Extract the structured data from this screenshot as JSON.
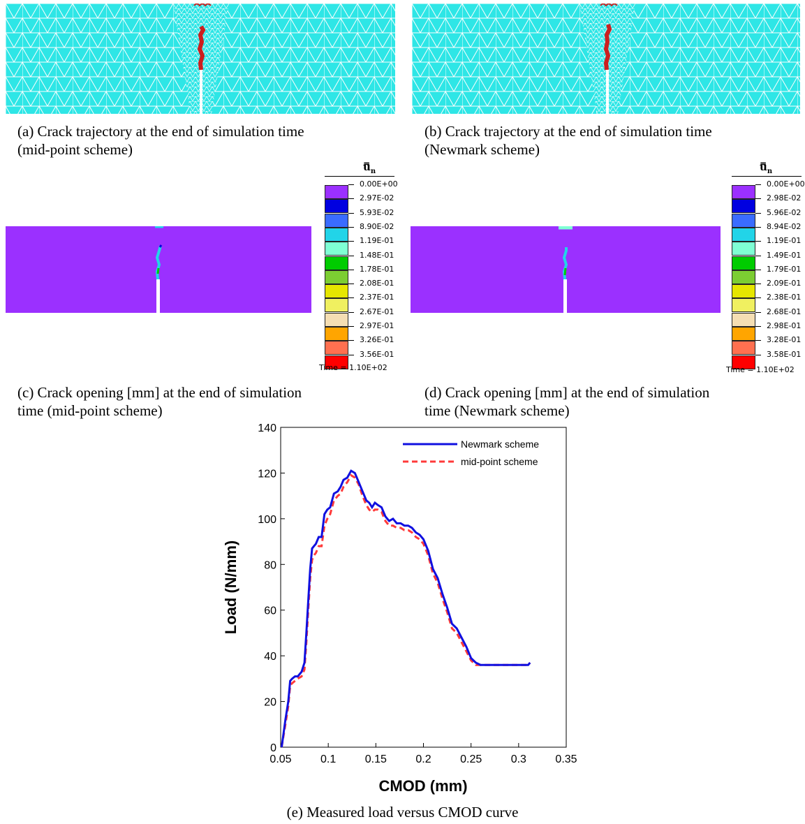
{
  "captions": {
    "a": "(a) Crack trajectory at the end of simulation time (mid-point scheme)",
    "a_line1": "(a) Crack trajectory at the end of simulation time",
    "a_line2": "(mid-point scheme)",
    "b_line1": "(b) Crack trajectory at the end of simulation time",
    "b_line2": "(Newmark scheme)",
    "c_line1": "(c) Crack opening [mm] at the end of simulation",
    "c_line2": "time (mid-point scheme)",
    "d_line1": "(d) Crack opening [mm] at the end of simulation",
    "d_line2": "time (Newmark scheme)",
    "e": "(e) Measured load versus CMOD curve"
  },
  "colors": {
    "mesh_fill": "#2ee6e6",
    "mesh_line": "#ffffff",
    "crack": "#cc1f1f",
    "beam": "#9b30ff"
  },
  "legend_c": {
    "title": "ū̄n",
    "labels": [
      "0.00E+00",
      "2.97E-02",
      "5.93E-02",
      "8.90E-02",
      "1.19E-01",
      "1.48E-01",
      "1.78E-01",
      "2.08E-01",
      "2.37E-01",
      "2.67E-01",
      "2.97E-01",
      "3.26E-01",
      "3.56E-01"
    ],
    "time": "Time = 1.10E+02"
  },
  "legend_d": {
    "title": "ū̄n",
    "labels": [
      "0.00E+00",
      "2.98E-02",
      "5.96E-02",
      "8.94E-02",
      "1.19E-01",
      "1.49E-01",
      "1.79E-01",
      "2.09E-01",
      "2.38E-01",
      "2.68E-01",
      "2.98E-01",
      "3.28E-01",
      "3.58E-01"
    ],
    "time": "Time = 1.10E+02"
  },
  "legend_colors": [
    "#9b30ff",
    "#0000e0",
    "#3a6cff",
    "#22d4e8",
    "#7fffd4",
    "#00cc00",
    "#7ccd32",
    "#e6e600",
    "#f0f060",
    "#f5deb3",
    "#ffa500",
    "#ff7050",
    "#ff0000"
  ],
  "chart_data": {
    "type": "line",
    "xlabel": "CMOD (mm)",
    "ylabel": "Load (N/mm)",
    "xlim": [
      0.05,
      0.35
    ],
    "ylim": [
      0,
      140
    ],
    "xticks": [
      0.05,
      0.1,
      0.15,
      0.2,
      0.25,
      0.3,
      0.35
    ],
    "xtick_labels": [
      "0.05",
      "0.1",
      "0.15",
      "0.2",
      "0.25",
      "0.3",
      "0.35"
    ],
    "yticks": [
      0,
      20,
      40,
      60,
      80,
      100,
      120,
      140
    ],
    "ytick_labels": [
      "0",
      "20",
      "40",
      "60",
      "80",
      "100",
      "120",
      "140"
    ],
    "legend_position": "top-right",
    "series": [
      {
        "name": "Newmark scheme",
        "color": "#1010e0",
        "style": "solid",
        "x": [
          0.051,
          0.053,
          0.055,
          0.058,
          0.06,
          0.062,
          0.065,
          0.068,
          0.072,
          0.075,
          0.077,
          0.079,
          0.081,
          0.083,
          0.085,
          0.087,
          0.09,
          0.093,
          0.096,
          0.099,
          0.102,
          0.106,
          0.11,
          0.113,
          0.116,
          0.12,
          0.124,
          0.128,
          0.132,
          0.136,
          0.14,
          0.143,
          0.146,
          0.149,
          0.152,
          0.156,
          0.16,
          0.164,
          0.168,
          0.172,
          0.176,
          0.18,
          0.184,
          0.188,
          0.192,
          0.196,
          0.2,
          0.205,
          0.21,
          0.215,
          0.22,
          0.225,
          0.23,
          0.235,
          0.24,
          0.245,
          0.25,
          0.255,
          0.26,
          0.265,
          0.27,
          0.275,
          0.28,
          0.285,
          0.29,
          0.295,
          0.3,
          0.305,
          0.31,
          0.312
        ],
        "y": [
          0,
          6,
          12,
          20,
          29,
          30,
          31,
          31,
          33,
          37,
          50,
          64,
          78,
          87,
          88,
          89,
          92,
          92,
          102,
          104,
          105,
          111,
          112,
          114,
          117,
          118,
          121,
          120,
          116,
          112,
          108,
          107,
          105,
          107,
          106,
          105,
          101,
          99,
          100,
          98,
          98,
          97,
          97,
          96,
          94,
          93,
          91,
          86,
          78,
          74,
          67,
          61,
          54,
          52,
          48,
          44,
          39,
          37,
          36,
          36,
          36,
          36,
          36,
          36,
          36,
          36,
          36,
          36,
          36,
          37
        ],
        "_note_hidden": ""
      },
      {
        "name": "mid-point scheme",
        "color": "#ff3a3a",
        "style": "dashed",
        "x": [
          0.051,
          0.053,
          0.055,
          0.058,
          0.06,
          0.062,
          0.065,
          0.068,
          0.072,
          0.075,
          0.077,
          0.079,
          0.081,
          0.083,
          0.085,
          0.087,
          0.09,
          0.093,
          0.096,
          0.099,
          0.102,
          0.106,
          0.11,
          0.113,
          0.116,
          0.12,
          0.124,
          0.128,
          0.132,
          0.136,
          0.14,
          0.143,
          0.146,
          0.149,
          0.152,
          0.156,
          0.16,
          0.164,
          0.168,
          0.172,
          0.176,
          0.18,
          0.184,
          0.188,
          0.192,
          0.196,
          0.2,
          0.205,
          0.21,
          0.215,
          0.22,
          0.225,
          0.23,
          0.235,
          0.24,
          0.245,
          0.25,
          0.255,
          0.26,
          0.265,
          0.27,
          0.275,
          0.28,
          0.285,
          0.29,
          0.295,
          0.3,
          0.305,
          0.31,
          0.312
        ],
        "y": [
          0,
          5,
          10,
          18,
          27,
          28,
          29,
          30,
          31,
          34,
          46,
          60,
          74,
          82,
          84,
          85,
          88,
          88,
          97,
          100,
          102,
          108,
          110,
          111,
          114,
          116,
          119,
          118,
          115,
          110,
          106,
          104,
          103,
          104,
          104,
          103,
          99,
          97,
          97,
          96,
          96,
          95,
          95,
          94,
          92,
          91,
          89,
          84,
          76,
          72,
          65,
          59,
          52,
          50,
          46,
          42,
          38,
          36,
          36,
          36,
          36,
          36,
          36,
          36,
          36,
          36,
          36,
          36,
          36,
          37
        ]
      }
    ]
  }
}
